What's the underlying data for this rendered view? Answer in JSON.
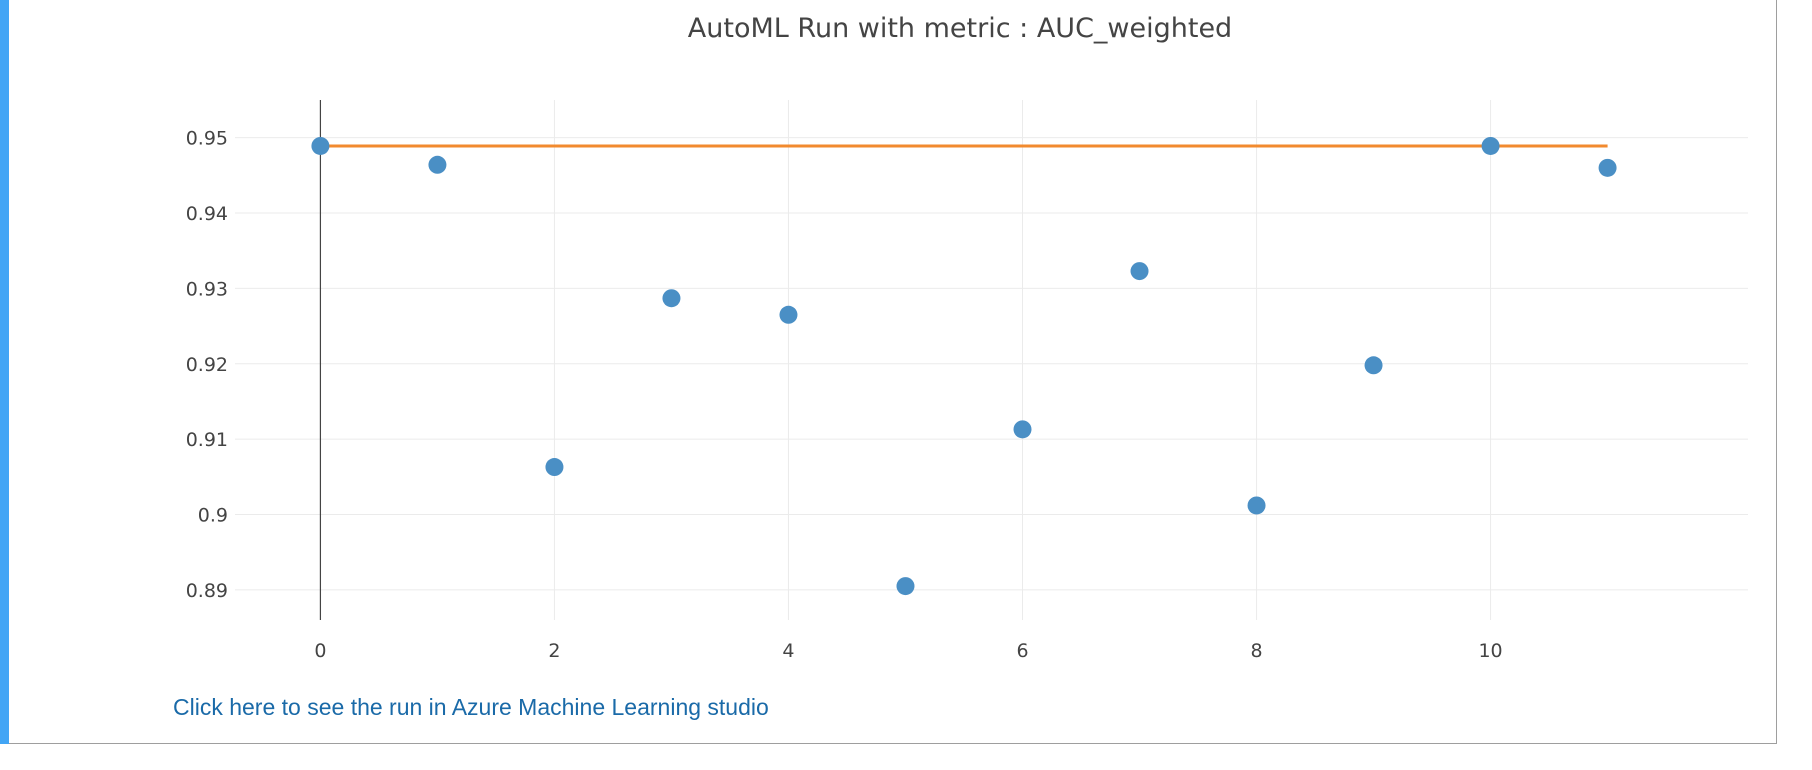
{
  "colors": {
    "accent_bar": "#42a5f5",
    "points": "#4a8fc5",
    "best_line": "#f28a2e",
    "link": "#1a6aa8"
  },
  "link": {
    "label": "Click here to see the run in Azure Machine Learning studio"
  },
  "chart_data": {
    "type": "scatter",
    "title": "AutoML Run with metric : AUC_weighted",
    "xlabel": "",
    "ylabel": "",
    "xlim": [
      -1.2,
      12.2
    ],
    "ylim": [
      0.886,
      0.955
    ],
    "grid": true,
    "x_ticks": [
      0,
      2,
      4,
      6,
      8,
      10
    ],
    "y_ticks": [
      0.89,
      0.9,
      0.91,
      0.92,
      0.93,
      0.94,
      0.95
    ],
    "series": [
      {
        "type": "scatter",
        "x": [
          0,
          1,
          2,
          3,
          4,
          5,
          6,
          7,
          8,
          9,
          10,
          11
        ],
        "values": [
          0.9489,
          0.9464,
          0.9063,
          0.9287,
          0.9265,
          0.8905,
          0.9113,
          0.9323,
          0.9012,
          0.9198,
          0.9489,
          0.946
        ]
      },
      {
        "type": "line",
        "x": [
          0,
          11
        ],
        "values": [
          0.9489,
          0.9489
        ]
      }
    ]
  }
}
